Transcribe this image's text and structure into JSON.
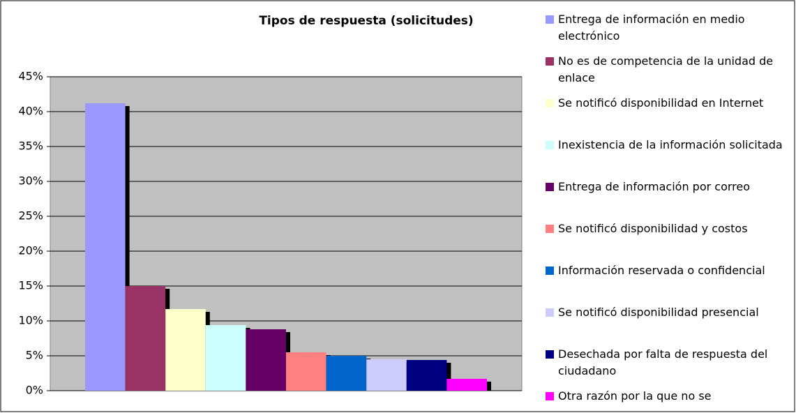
{
  "chart_data": {
    "type": "bar",
    "title": "Tipos de respuesta (solicitudes)",
    "categories": [
      null
    ],
    "series": [
      {
        "name": "Entrega de información en medio electrónico",
        "color": "#9999ff",
        "values": [
          41.2
        ]
      },
      {
        "name": "No es de competencia de la unidad de enlace",
        "color": "#993366",
        "values": [
          15.0
        ]
      },
      {
        "name": "Se notificó disponibilidad en Internet",
        "color": "#ffffcc",
        "values": [
          11.7
        ]
      },
      {
        "name": "Inexistencia de la información solicitada",
        "color": "#ccffff",
        "values": [
          9.4
        ]
      },
      {
        "name": "Entrega de información por correo",
        "color": "#660066",
        "values": [
          8.8
        ]
      },
      {
        "name": "Se notificó disponibilidad y costos",
        "color": "#ff8080",
        "values": [
          5.5
        ]
      },
      {
        "name": "Información reservada o confidencial",
        "color": "#0066cc",
        "values": [
          5.0
        ]
      },
      {
        "name": "Se notificó disponibilidad presencial",
        "color": "#ccccff",
        "values": [
          4.5
        ]
      },
      {
        "name": "Desechada por falta de respuesta del ciudadano",
        "color": "#000080",
        "values": [
          4.4
        ]
      },
      {
        "name": "Otra razón por la que no se",
        "color": "#ff00ff",
        "values": [
          1.7
        ]
      }
    ],
    "ylim": [
      0,
      45
    ],
    "yticks": [
      {
        "value": 0,
        "label": "0%"
      },
      {
        "value": 5,
        "label": "5%"
      },
      {
        "value": 10,
        "label": "10%"
      },
      {
        "value": 15,
        "label": "15%"
      },
      {
        "value": 20,
        "label": "20%"
      },
      {
        "value": 25,
        "label": "25%"
      },
      {
        "value": 30,
        "label": "30%"
      },
      {
        "value": 35,
        "label": "35%"
      },
      {
        "value": 40,
        "label": "40%"
      },
      {
        "value": 45,
        "label": "45%"
      }
    ],
    "grid": true
  }
}
